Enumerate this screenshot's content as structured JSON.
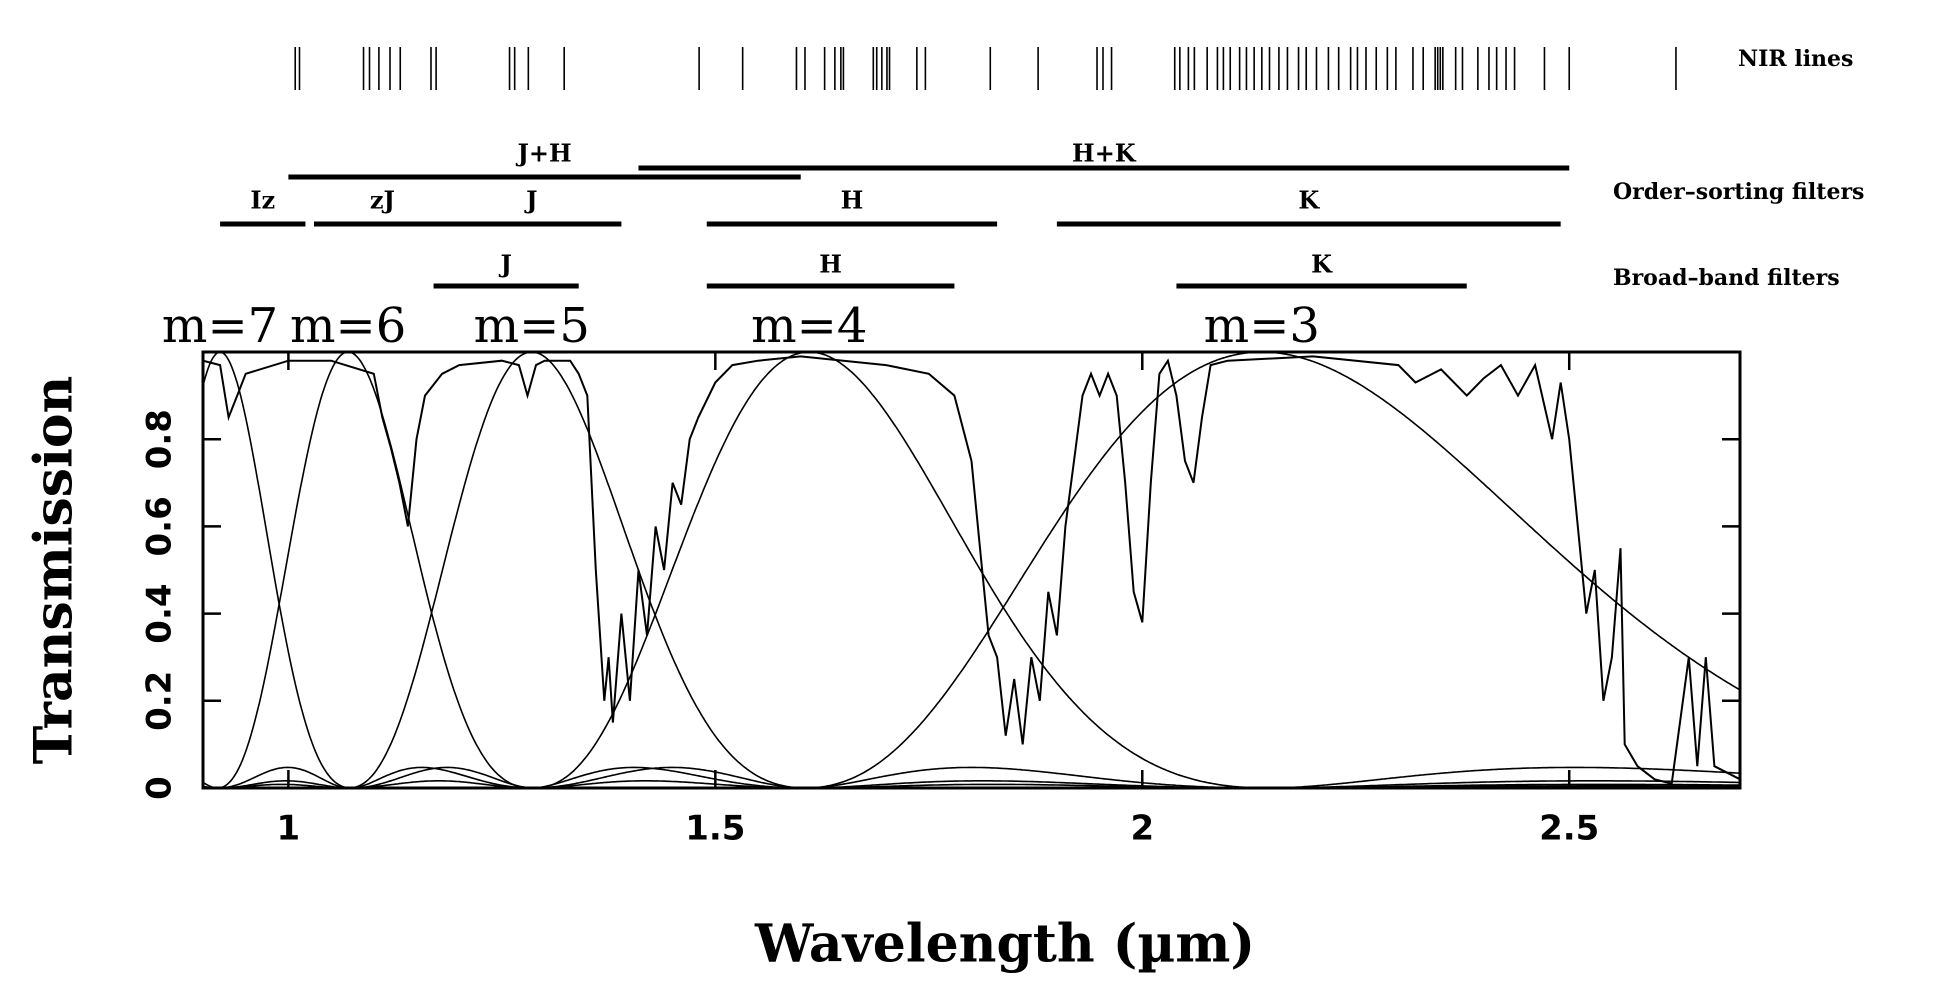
{
  "chart_data": {
    "type": "line",
    "xlabel": "Wavelength (µm)",
    "ylabel": "Transmission",
    "xlim": [
      0.9,
      2.7
    ],
    "ylim": [
      0,
      1
    ],
    "xticks": [
      1,
      1.5,
      2,
      2.5
    ],
    "yticks": [
      0,
      0.2,
      0.4,
      0.6,
      0.8
    ],
    "color": "#000000",
    "nir_lines": {
      "label": "NIR lines",
      "values": [
        1.008,
        1.013,
        1.088,
        1.095,
        1.106,
        1.119,
        1.131,
        1.167,
        1.173,
        1.259,
        1.265,
        1.281,
        1.323,
        1.481,
        1.532,
        1.595,
        1.605,
        1.628,
        1.64,
        1.647,
        1.65,
        1.685,
        1.689,
        1.695,
        1.701,
        1.704,
        1.736,
        1.746,
        1.822,
        1.878,
        1.947,
        1.954,
        1.964,
        2.038,
        2.044,
        2.054,
        2.061,
        2.076,
        2.088,
        2.095,
        2.103,
        2.114,
        2.122,
        2.131,
        2.14,
        2.149,
        2.16,
        2.17,
        2.183,
        2.192,
        2.204,
        2.218,
        2.23,
        2.244,
        2.252,
        2.262,
        2.274,
        2.287,
        2.297,
        2.317,
        2.329,
        2.343,
        2.346,
        2.349,
        2.352,
        2.367,
        2.375,
        2.393,
        2.406,
        2.415,
        2.426,
        2.436,
        2.471,
        2.5,
        2.625
      ]
    },
    "combined_filters": [
      {
        "name": "J+H",
        "range": [
          1.0,
          1.6
        ]
      },
      {
        "name": "H+K",
        "range": [
          1.41,
          2.5
        ]
      }
    ],
    "order_sorting_filters": {
      "label": "Order–sorting filters",
      "filters": [
        {
          "name": "Iz",
          "range": [
            0.92,
            1.02
          ]
        },
        {
          "name": "zJ",
          "range": [
            1.03,
            1.19
          ]
        },
        {
          "name": "J",
          "range": [
            1.18,
            1.39
          ]
        },
        {
          "name": "H",
          "range": [
            1.49,
            1.83
          ]
        },
        {
          "name": "K",
          "range": [
            1.9,
            2.49
          ]
        }
      ]
    },
    "broad_band_filters": {
      "label": "Broad–band filters",
      "filters": [
        {
          "name": "J",
          "range": [
            1.17,
            1.34
          ]
        },
        {
          "name": "H",
          "range": [
            1.49,
            1.78
          ]
        },
        {
          "name": "K",
          "range": [
            2.04,
            2.38
          ]
        }
      ]
    },
    "orders": [
      {
        "label": "m=7",
        "m": 7,
        "center": 0.92
      },
      {
        "label": "m=6",
        "m": 6,
        "center": 1.07
      },
      {
        "label": "m=5",
        "m": 5,
        "center": 1.285
      },
      {
        "label": "m=4",
        "m": 4,
        "center": 1.61
      },
      {
        "label": "m=3",
        "m": 3,
        "center": 2.14
      }
    ],
    "x": [
      0.9,
      0.92,
      0.93,
      0.94,
      0.95,
      1.0,
      1.05,
      1.1,
      1.11,
      1.12,
      1.13,
      1.14,
      1.15,
      1.16,
      1.18,
      1.2,
      1.25,
      1.27,
      1.28,
      1.29,
      1.3,
      1.33,
      1.34,
      1.35,
      1.36,
      1.37,
      1.375,
      1.38,
      1.39,
      1.4,
      1.41,
      1.42,
      1.43,
      1.44,
      1.45,
      1.46,
      1.47,
      1.48,
      1.5,
      1.52,
      1.55,
      1.6,
      1.65,
      1.7,
      1.75,
      1.78,
      1.8,
      1.81,
      1.82,
      1.83,
      1.84,
      1.85,
      1.86,
      1.87,
      1.88,
      1.89,
      1.9,
      1.91,
      1.92,
      1.93,
      1.94,
      1.95,
      1.96,
      1.97,
      1.98,
      1.99,
      2.0,
      2.01,
      2.02,
      2.03,
      2.04,
      2.05,
      2.06,
      2.07,
      2.08,
      2.1,
      2.2,
      2.3,
      2.32,
      2.35,
      2.38,
      2.4,
      2.42,
      2.44,
      2.46,
      2.48,
      2.49,
      2.5,
      2.51,
      2.52,
      2.53,
      2.54,
      2.55,
      2.56,
      2.565,
      2.58,
      2.6,
      2.62,
      2.64,
      2.65,
      2.66,
      2.67,
      2.7
    ],
    "values": [
      0.98,
      0.97,
      0.85,
      0.9,
      0.95,
      0.98,
      0.98,
      0.95,
      0.85,
      0.78,
      0.7,
      0.6,
      0.8,
      0.9,
      0.95,
      0.97,
      0.98,
      0.97,
      0.9,
      0.97,
      0.98,
      0.98,
      0.95,
      0.9,
      0.5,
      0.2,
      0.3,
      0.15,
      0.4,
      0.2,
      0.5,
      0.35,
      0.6,
      0.5,
      0.7,
      0.65,
      0.8,
      0.85,
      0.93,
      0.97,
      0.98,
      0.99,
      0.98,
      0.97,
      0.95,
      0.9,
      0.75,
      0.55,
      0.35,
      0.3,
      0.12,
      0.25,
      0.1,
      0.3,
      0.2,
      0.45,
      0.35,
      0.6,
      0.75,
      0.9,
      0.95,
      0.9,
      0.95,
      0.9,
      0.7,
      0.45,
      0.38,
      0.7,
      0.95,
      0.98,
      0.9,
      0.75,
      0.7,
      0.85,
      0.97,
      0.98,
      0.99,
      0.97,
      0.93,
      0.96,
      0.9,
      0.94,
      0.97,
      0.9,
      0.97,
      0.8,
      0.93,
      0.8,
      0.6,
      0.4,
      0.5,
      0.2,
      0.3,
      0.55,
      0.1,
      0.05,
      0.02,
      0.01,
      0.3,
      0.05,
      0.3,
      0.05,
      0.02
    ]
  }
}
